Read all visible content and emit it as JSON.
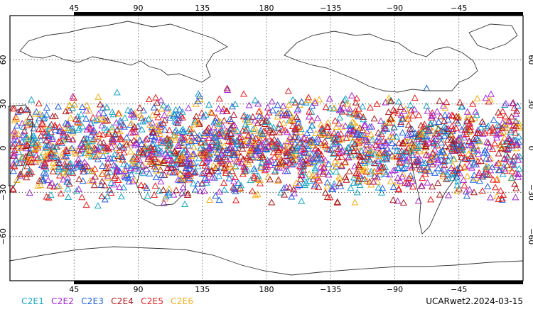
{
  "chart_data": {
    "type": "scatter",
    "projection": "cylindrical-equidistant",
    "center_longitude": 180,
    "lon_range": [
      0,
      360
    ],
    "lat_range": [
      -90,
      90
    ],
    "grid": true,
    "grid_style": "dotted",
    "marker": "open-triangle",
    "top_lon_ticks": [
      "45",
      "90",
      "135",
      "180",
      "−135",
      "−90",
      "−45"
    ],
    "bottom_lon_ticks": [
      "45",
      "90",
      "135",
      "180",
      "−135",
      "−90",
      "−45"
    ],
    "lon_tick_values": [
      45,
      90,
      135,
      180,
      225,
      270,
      315
    ],
    "left_lat_ticks": [
      "60",
      "30",
      "0",
      "−30",
      "−60"
    ],
    "right_lat_ticks": [
      "60",
      "30",
      "0",
      "−30",
      "−60"
    ],
    "lat_tick_values": [
      60,
      30,
      0,
      -30,
      -60
    ],
    "lat_band": [
      -45,
      45
    ],
    "series": [
      {
        "name": "C2E1",
        "color": "#13a6c8"
      },
      {
        "name": "C2E2",
        "color": "#a626d6"
      },
      {
        "name": "C2E3",
        "color": "#1f60e0"
      },
      {
        "name": "C2E4",
        "color": "#b01818"
      },
      {
        "name": "C2E5",
        "color": "#ea1a1a"
      },
      {
        "name": "C2E6",
        "color": "#f4ad14"
      }
    ]
  },
  "footer": {
    "label": "UCARwet2.2024-03-15"
  }
}
